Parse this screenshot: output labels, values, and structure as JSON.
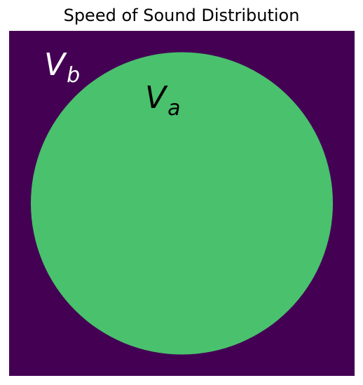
{
  "title": "Speed of Sound Distribution",
  "regions": {
    "background": {
      "label_main": "V",
      "label_sub": "b",
      "fill": "#440154",
      "label_color": "#ffffff"
    },
    "inclusion": {
      "label_main": "V",
      "label_sub": "a",
      "fill": "#4ac16d",
      "label_color": "#000000",
      "shape": "circle"
    }
  }
}
